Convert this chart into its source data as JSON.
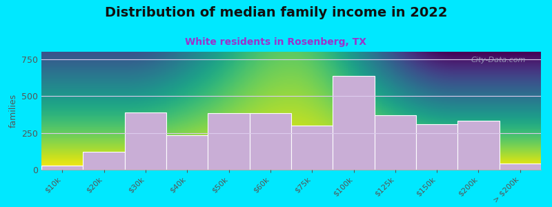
{
  "title": "Distribution of median family income in 2022",
  "subtitle": "White residents in Rosenberg, TX",
  "xlabel": "",
  "ylabel": "families",
  "categories": [
    "$10k",
    "$20k",
    "$30k",
    "$40k",
    "$50k",
    "$60k",
    "$75k",
    "$100k",
    "$125k",
    "$150k",
    "$200k",
    "> $200k"
  ],
  "values": [
    30,
    120,
    390,
    235,
    385,
    385,
    300,
    635,
    370,
    310,
    330,
    40
  ],
  "bar_color": "#c9aed6",
  "bar_edge_color": "#ffffff",
  "ylim": [
    0,
    800
  ],
  "yticks": [
    0,
    250,
    500,
    750
  ],
  "background_outer": "#00e8ff",
  "background_inner_top": "#e0f0d8",
  "background_inner_bottom": "#f8f8f8",
  "title_fontsize": 14,
  "subtitle_fontsize": 10,
  "subtitle_color": "#9933cc",
  "ylabel_fontsize": 9,
  "watermark": "City-Data.com",
  "grid_color": "#ddccee",
  "tick_label_rotation": 45,
  "tick_label_fontsize": 8
}
